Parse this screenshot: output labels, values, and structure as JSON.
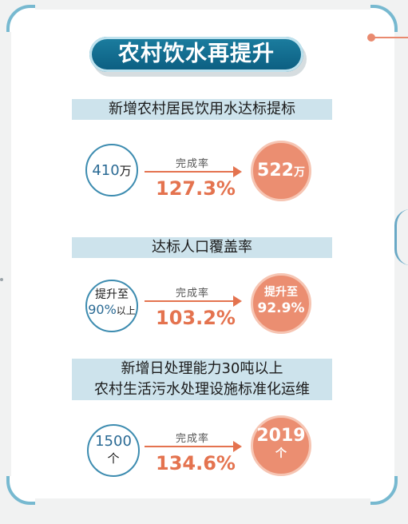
{
  "title": "农村饮水再提升",
  "sections": [
    {
      "band_lines": [
        "新增农村居民饮用水达标提标"
      ],
      "left_main": "410",
      "left_unit": "万",
      "rate_label": "完成率",
      "rate_value": "127.3%",
      "right_main": "522",
      "right_unit": "万"
    },
    {
      "band_lines": [
        "达标人口覆盖率"
      ],
      "left_line1": "提升至",
      "left_main": "90%",
      "left_unit": "以上",
      "rate_label": "完成率",
      "rate_value": "103.2%",
      "right_line1": "提升至",
      "right_main": "92.9%"
    },
    {
      "band_lines": [
        "新增日处理能力30吨以上",
        "农村生活污水处理设施标准化运维"
      ],
      "left_main": "1500",
      "left_unit": "个",
      "rate_label": "完成率",
      "rate_value": "134.6%",
      "right_main": "2019",
      "right_unit": "个"
    }
  ],
  "colors": {
    "primary_blue": "#0b5d80",
    "accent_orange": "#eb8e71",
    "band_blue": "#cde3ec"
  }
}
